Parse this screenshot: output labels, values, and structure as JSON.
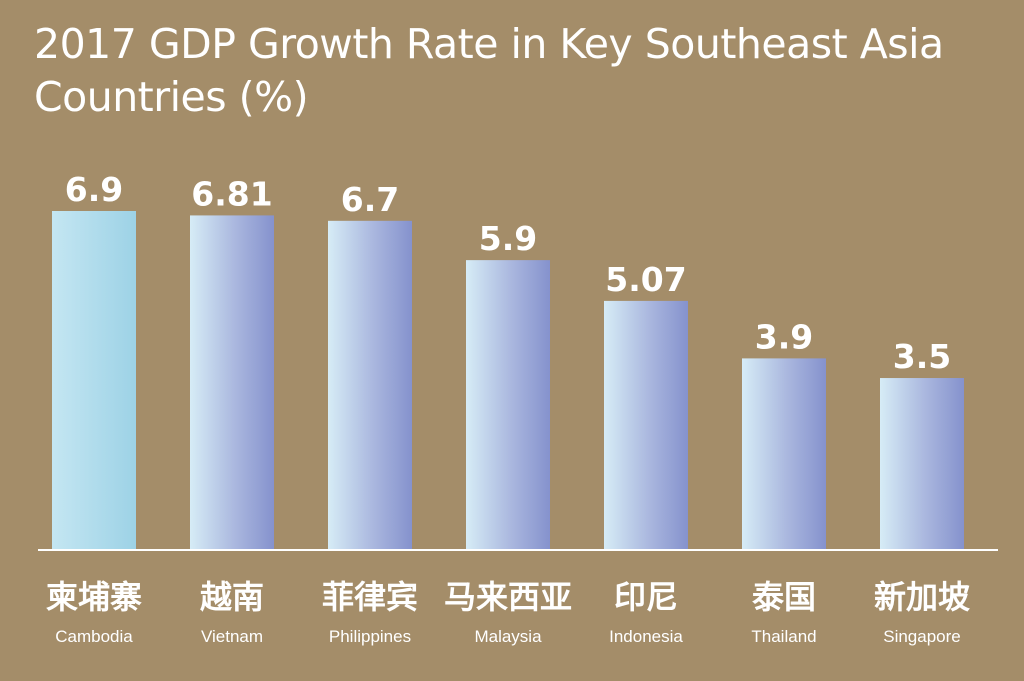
{
  "colors": {
    "background": "#a48d69",
    "bar_gradient": [
      "#d6ecf6",
      "#a9b6de",
      "#8592cd"
    ],
    "first_bar_gradient": [
      "#c4e6f2",
      "#9dd2e6"
    ],
    "axis": "#ffffff",
    "text": "#ffffff"
  },
  "chart_data": {
    "type": "bar",
    "title": "2017 GDP Growth Rate in Key Southeast Asia Countries (%)",
    "xlabel": "",
    "ylabel": "",
    "categories": [
      {
        "zh": "柬埔寨",
        "en": "Cambodia"
      },
      {
        "zh": "越南",
        "en": "Vietnam"
      },
      {
        "zh": "菲律宾",
        "en": "Philippines"
      },
      {
        "zh": "马来西亚",
        "en": "Malaysia"
      },
      {
        "zh": "印尼",
        "en": "Indonesia"
      },
      {
        "zh": "泰国",
        "en": "Thailand"
      },
      {
        "zh": "新加坡",
        "en": "Singapore"
      }
    ],
    "values": [
      6.9,
      6.81,
      6.7,
      5.9,
      5.07,
      3.9,
      3.5
    ],
    "value_labels": [
      "6.9",
      "6.81",
      "6.7",
      "5.9",
      "5.07",
      "3.9",
      "3.5"
    ],
    "ylim": [
      0,
      6.9
    ],
    "grid": false,
    "legend": "none"
  }
}
